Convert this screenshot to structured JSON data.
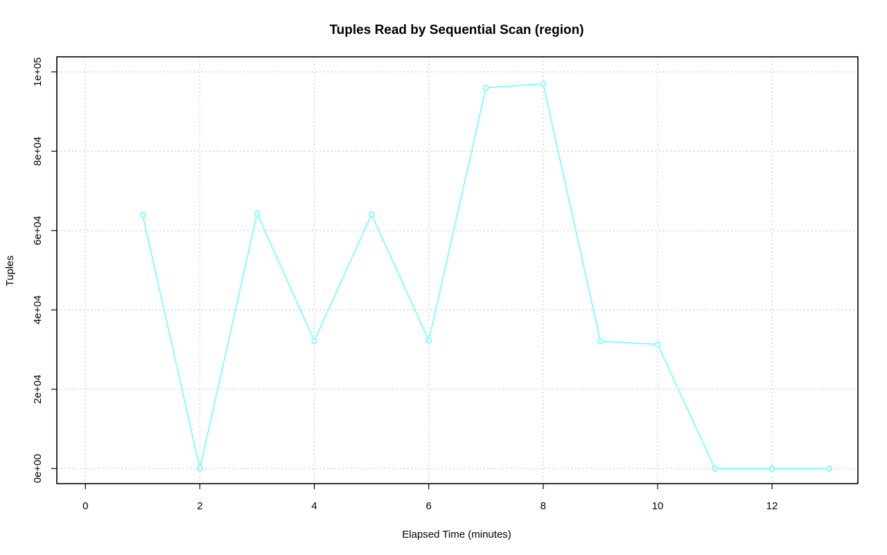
{
  "chart_data": {
    "type": "line",
    "title": "Tuples Read by Sequential Scan (region)",
    "xlabel": "Elapsed Time (minutes)",
    "ylabel": "Tuples",
    "xlim": [
      -0.5,
      13.5
    ],
    "ylim": [
      -3800,
      103800
    ],
    "x_ticks": [
      0,
      2,
      4,
      6,
      8,
      10,
      12
    ],
    "x_tick_labels": [
      "0",
      "2",
      "4",
      "6",
      "8",
      "10",
      "12"
    ],
    "y_ticks": [
      0,
      20000,
      40000,
      60000,
      80000,
      100000
    ],
    "y_tick_labels": [
      "0e+00",
      "2e+04",
      "4e+04",
      "6e+04",
      "8e+04",
      "1e+05"
    ],
    "grid": true,
    "grid_style": "dotted",
    "markers": "open-circle",
    "series": [
      {
        "color": "#66ffff",
        "x": [
          1,
          2,
          3,
          4,
          5,
          6,
          7,
          8,
          9,
          10,
          11,
          12,
          13
        ],
        "values": [
          64000,
          0,
          64300,
          32200,
          64100,
          32300,
          96000,
          97000,
          32100,
          31300,
          0,
          0,
          0
        ]
      }
    ]
  }
}
